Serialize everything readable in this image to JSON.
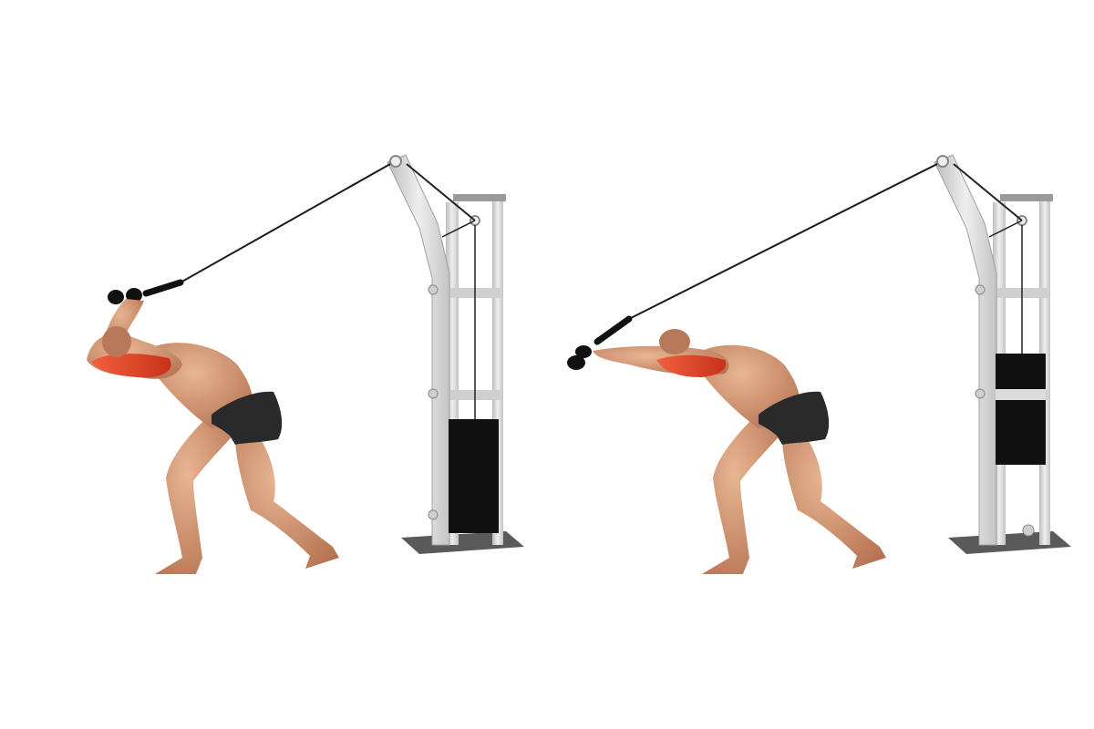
{
  "colors": {
    "background": "#ffffff",
    "skin": "#d9a07c",
    "skin_shadow": "#b8785a",
    "target_muscle": "#e8472a",
    "shorts": "#2a2a2a",
    "machine_frame": "#d9d9d9",
    "machine_shadow": "#a8a8a8",
    "weight_stack": "#111111",
    "cable": "#1a1a1a",
    "base_plate": "#555555"
  },
  "figures": [
    {
      "phase": "start",
      "arms": "flexed-overhead"
    },
    {
      "phase": "finish",
      "arms": "extended-forward"
    }
  ],
  "icons": [
    "cable-machine-icon",
    "rope-handle-icon",
    "weight-stack-icon"
  ]
}
